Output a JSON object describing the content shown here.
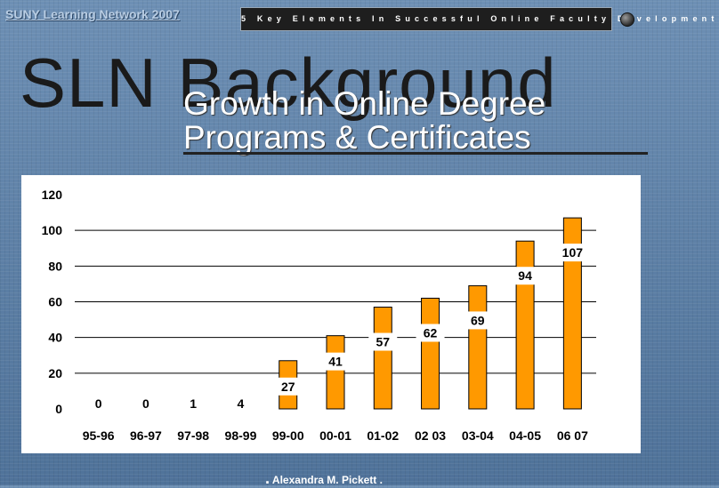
{
  "header": {
    "org_name": "SUNY Learning Network 2007",
    "banner": "5 Key Elements In Successful Online Faculty Development"
  },
  "slide": {
    "title": "SLN Background",
    "subtitle_line1": "Growth in Online Degree",
    "subtitle_line2": "Programs & Certificates"
  },
  "footer": {
    "left_dot": ".",
    "author": "Alexandra M. Pickett",
    "right_dot": "."
  },
  "colors": {
    "bar": "#ff9900",
    "bar_outline": "#000000",
    "grid": "#000000"
  },
  "chart_data": {
    "type": "bar",
    "title": "",
    "xlabel": "",
    "ylabel": "",
    "categories": [
      "95-96",
      "96-97",
      "97-98",
      "98-99",
      "99-00",
      "00-01",
      "01-02",
      "02 03",
      "03-04",
      "04-05",
      "06 07"
    ],
    "values": [
      0,
      0,
      1,
      4,
      27,
      41,
      57,
      62,
      69,
      94,
      107
    ],
    "ylim": [
      0,
      120
    ],
    "yticks": [
      0,
      20,
      40,
      60,
      80,
      100,
      120
    ],
    "grid": true,
    "data_labels": true
  }
}
